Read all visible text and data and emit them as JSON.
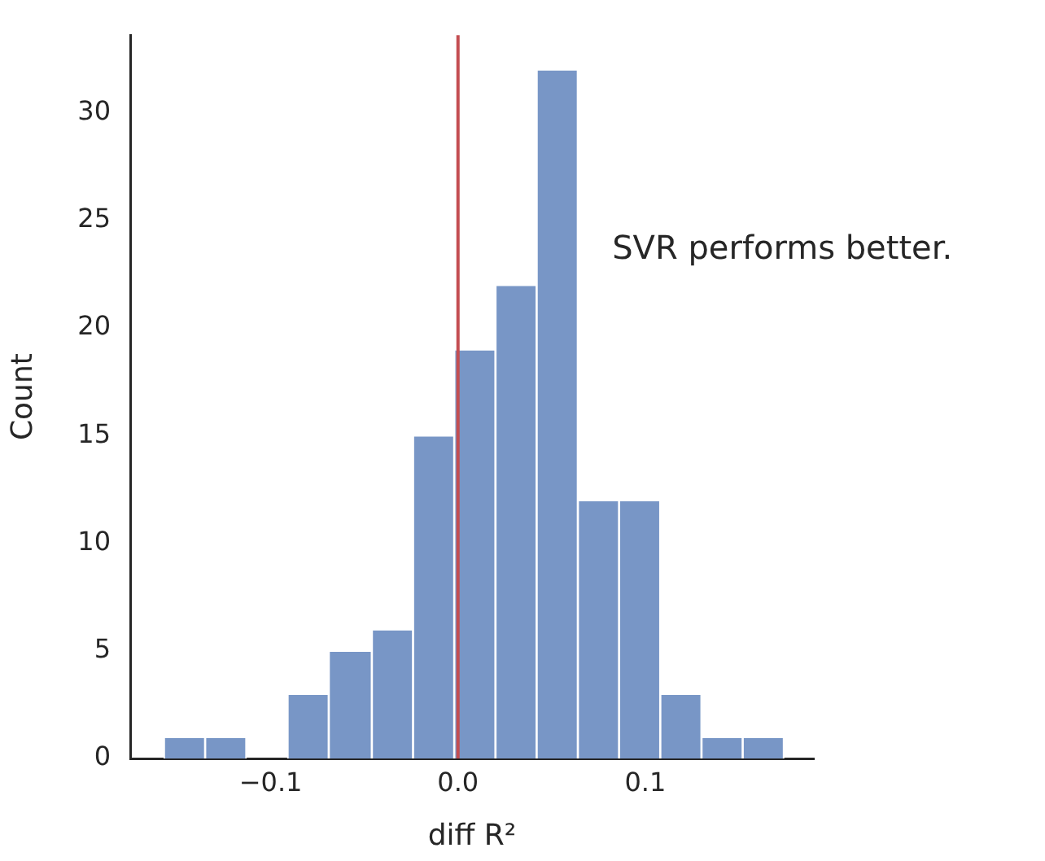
{
  "chart_data": {
    "type": "histogram",
    "xlabel": "diff R²",
    "ylabel": "Count",
    "bins": [
      -0.157,
      -0.135,
      -0.113,
      -0.091,
      -0.069,
      -0.046,
      -0.024,
      -0.002,
      0.02,
      0.042,
      0.064,
      0.086,
      0.108,
      0.13,
      0.152,
      0.174
    ],
    "values": [
      1,
      1,
      0,
      3,
      5,
      6,
      15,
      19,
      22,
      32,
      12,
      12,
      3,
      1,
      1
    ],
    "color": "#7896c6",
    "xlim": [
      -0.175,
      0.19
    ],
    "xticks": [
      {
        "value": -0.1,
        "label": "−0.1"
      },
      {
        "value": 0,
        "label": "0.0"
      },
      0.1
    ],
    "ylim": [
      0,
      33.6
    ],
    "yticks": [
      0,
      5,
      10,
      15,
      20,
      25,
      30
    ],
    "ref_lines": [
      {
        "axis": "x",
        "value": 0,
        "color": "#c44e52"
      }
    ],
    "annotations": [
      "SVR performs better."
    ],
    "grid": false,
    "legend": false
  }
}
